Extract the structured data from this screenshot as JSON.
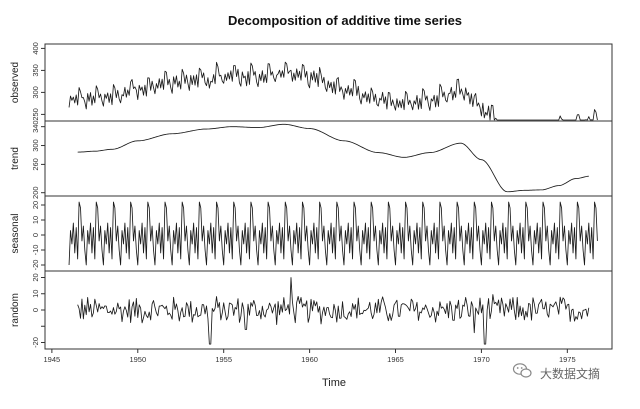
{
  "chart_data": {
    "type": "line",
    "title": "Decomposition of additive time series",
    "xlabel": "Time",
    "x_start": 1946.0,
    "x_end": 1976.75,
    "frequency": 12,
    "x_ticks": [
      "1945",
      "1950",
      "1955",
      "1960",
      "1965",
      "1970",
      "1975"
    ],
    "x_tick_values": [
      1945,
      1950,
      1955,
      1960,
      1965,
      1970,
      1975
    ],
    "xlim": [
      1944.6,
      1977.6
    ],
    "panels": [
      {
        "name": "observed",
        "ylabel": "observed",
        "ylim": [
          235,
          410
        ],
        "y_ticks": [
          250,
          300,
          350,
          400
        ],
        "y_tick_labels": [
          "250",
          "300",
          "350",
          "400"
        ],
        "series": {
          "kind": "monthly_sum",
          "parts": [
            "trend",
            "seasonal",
            "random"
          ]
        }
      },
      {
        "name": "trend",
        "ylabel": "trend",
        "ylim": [
          193,
          352
        ],
        "y_ticks": [
          200,
          260,
          300,
          340
        ],
        "y_tick_labels": [
          "200",
          "260",
          "300",
          "340"
        ],
        "series": {
          "kind": "knots",
          "x": [
            1946.5,
            1947.5,
            1948.5,
            1950.0,
            1952.0,
            1954.0,
            1955.5,
            1957.0,
            1958.5,
            1960.0,
            1962.0,
            1964.0,
            1965.5,
            1967.0,
            1968.8,
            1970.0,
            1971.5,
            1972.5,
            1973.5,
            1974.5,
            1975.5,
            1976.3
          ],
          "y": [
            286,
            288,
            292,
            310,
            325,
            335,
            340,
            338,
            345,
            336,
            310,
            285,
            275,
            285,
            305,
            270,
            202,
            205,
            206,
            215,
            230,
            235
          ]
        }
      },
      {
        "name": "seasonal",
        "ylabel": "seasonal",
        "ylim": [
          -24,
          26
        ],
        "y_ticks": [
          -20,
          -10,
          0,
          10,
          20
        ],
        "y_tick_labels": [
          "-20",
          "-10",
          "0",
          "10",
          "20"
        ],
        "series": {
          "kind": "repeating",
          "period": 12,
          "values": [
            -20,
            3,
            -6,
            8,
            -12,
            5,
            -16,
            22,
            18,
            -4,
            6,
            -10
          ]
        }
      },
      {
        "name": "random",
        "ylabel": "random",
        "ylim": [
          -24,
          24
        ],
        "y_ticks": [
          -20,
          -10,
          0,
          10,
          20
        ],
        "y_tick_labels": [
          "-20",
          "",
          "0",
          "10",
          "20"
        ],
        "series": {
          "kind": "noise",
          "amplitude": 9,
          "spikes": [
            [
              1954.2,
              -21
            ],
            [
              1958.9,
              20
            ],
            [
              1970.2,
              -21
            ],
            [
              1969.6,
              -14
            ],
            [
              1956.3,
              -12
            ]
          ]
        }
      }
    ]
  },
  "watermark": {
    "text": "大数据文摘",
    "icon": "wechat-icon"
  },
  "colors": {
    "line": "#1a1a1a",
    "frame": "#333333",
    "background": "#ffffff",
    "watermark": "#777777"
  }
}
